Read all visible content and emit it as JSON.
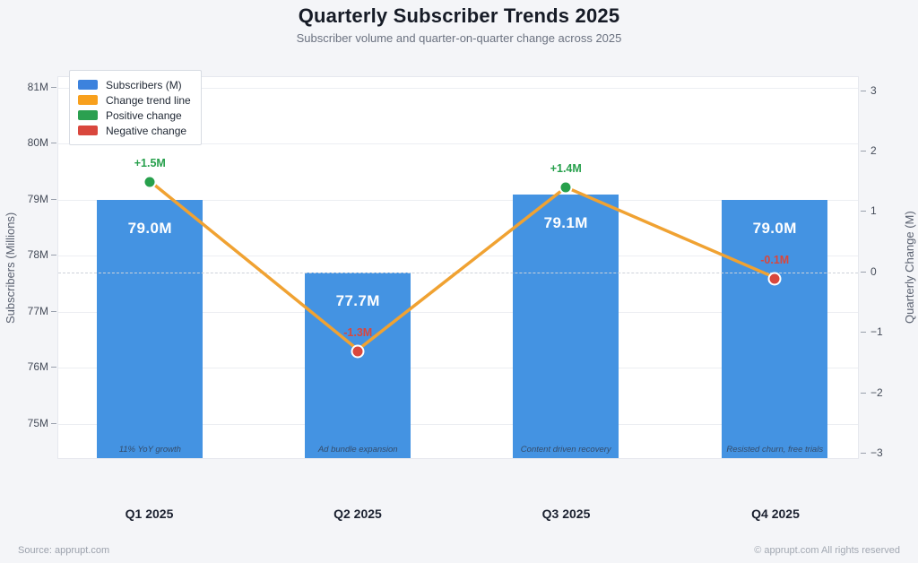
{
  "page": {
    "title": "Quarterly Subscriber Trends 2025",
    "subtitle": "Subscriber volume and quarter-on-quarter change across 2025",
    "footer_left": "Source: apprupt.com",
    "footer_right": "© apprupt.com  All rights reserved"
  },
  "colors": {
    "background": "#f4f5f8",
    "panel": "#ffffff",
    "grid": "#eceef2",
    "zero_line": "#cdd2da",
    "bar": "#4493e2",
    "trend_line": "#f0a232",
    "positive": "#27a04c",
    "negative": "#d9473d",
    "bar_label": "#ffffff"
  },
  "legend": {
    "items": [
      {
        "name": "subscribers",
        "label": "Subscribers (M)",
        "color": "#3c82dd"
      },
      {
        "name": "change-trend-line",
        "label": "Change trend line",
        "color": "#f8a01d"
      },
      {
        "name": "positive-change",
        "label": "Positive change",
        "color": "#2ba050"
      },
      {
        "name": "negative-change",
        "label": "Negative change",
        "color": "#d9473d"
      }
    ]
  },
  "chart_data": {
    "type": "bar+line",
    "title": "Quarterly Subscriber Trends 2025",
    "subtitle": "Subscriber volume and quarter-on-quarter change across 2025",
    "categories": [
      "Q1 2025",
      "Q2 2025",
      "Q3 2025",
      "Q4 2025"
    ],
    "series": [
      {
        "name": "Subscribers (M)",
        "type": "bar",
        "axis": "left",
        "values": [
          79.0,
          77.7,
          79.1,
          79.0
        ],
        "labels": [
          "79.0M",
          "77.7M",
          "79.1M",
          "79.0M"
        ]
      },
      {
        "name": "Change trend line",
        "type": "line",
        "axis": "right",
        "values": [
          1.5,
          -1.3,
          1.4,
          -0.1
        ],
        "labels": [
          "+1.5M",
          "-1.3M",
          "+1.4M",
          "-0.1M"
        ]
      }
    ],
    "annotations": [
      "11% YoY growth",
      "Ad bundle expansion",
      "Content driven recovery",
      "Resisted churn, free trials"
    ],
    "ylabel_left": "Subscribers (Millions)",
    "ylabel_right": "Quarterly Change (M)",
    "yticks_left": [
      {
        "label": "81M",
        "value": 81
      },
      {
        "label": "80M",
        "value": 80
      },
      {
        "label": "79M",
        "value": 79
      },
      {
        "label": "78M",
        "value": 78
      },
      {
        "label": "77M",
        "value": 77
      },
      {
        "label": "76M",
        "value": 76
      },
      {
        "label": "75M",
        "value": 75
      }
    ],
    "yticks_right": [
      {
        "label": "3",
        "value": 3
      },
      {
        "label": "2",
        "value": 2
      },
      {
        "label": "1",
        "value": 1
      },
      {
        "label": "0",
        "value": 0
      },
      {
        "label": "−1",
        "value": -1
      },
      {
        "label": "−2",
        "value": -2
      },
      {
        "label": "−3",
        "value": -3
      }
    ],
    "ylim_left": [
      74.36,
      81.19
    ],
    "ylim_right": [
      -3.1,
      3.23
    ],
    "zero_reference_line": 0,
    "grid": true,
    "legend_position": "top-left"
  }
}
